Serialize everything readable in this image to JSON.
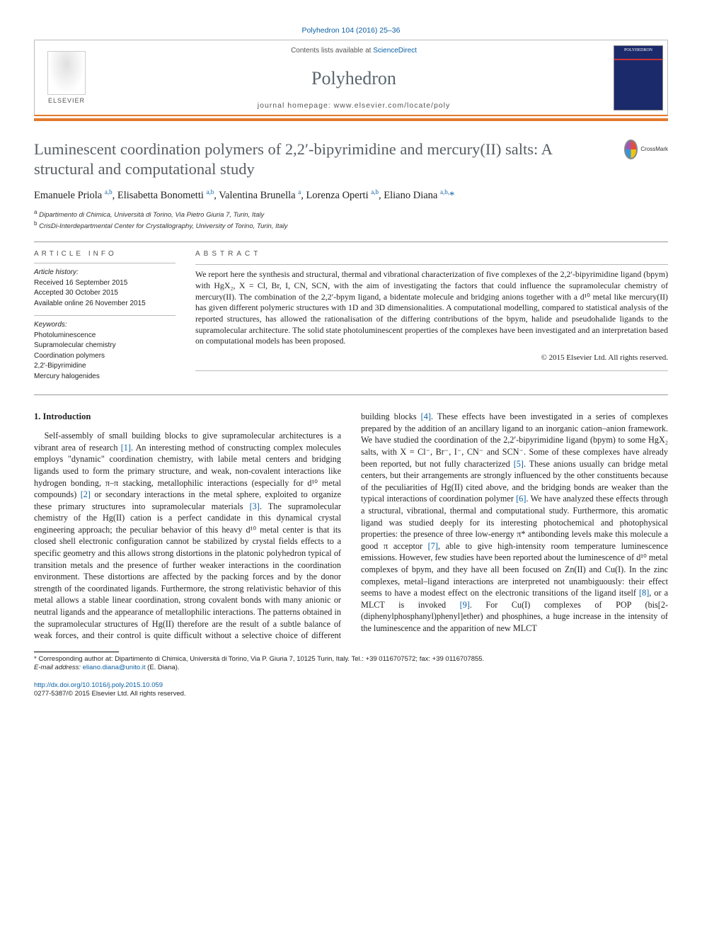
{
  "journal_ref": "Polyhedron 104 (2016) 25–36",
  "header": {
    "contents_prefix": "Contents lists available at ",
    "contents_link": "ScienceDirect",
    "journal": "Polyhedron",
    "homepage_prefix": "journal homepage: ",
    "homepage_url": "www.elsevier.com/locate/poly",
    "publisher": "ELSEVIER",
    "cover_label": "POLYHEDRON"
  },
  "title": "Luminescent coordination polymers of 2,2′-bipyrimidine and mercury(II) salts: A structural and computational study",
  "crossmark": "CrossMark",
  "authors_html": "Emanuele Priola <sup>a,b</sup>, Elisabetta Bonometti <sup>a,b</sup>, Valentina Brunella <sup>a</sup>, Lorenza Operti <sup>a,b</sup>, Eliano Diana <sup>a,b,</sup><span class='star'>*</span>",
  "affiliations": [
    "Dipartimento di Chimica, Università di Torino, Via Pietro Giuria 7, Turin, Italy",
    "CrisDi-Interdepartmental Center for Crystallography, University of Torino, Turin, Italy"
  ],
  "aff_markers": [
    "a",
    "b"
  ],
  "info": {
    "heading": "ARTICLE INFO",
    "history_head": "Article history:",
    "received": "Received 16 September 2015",
    "accepted": "Accepted 30 October 2015",
    "online": "Available online 26 November 2015",
    "kw_head": "Keywords:",
    "keywords": [
      "Photoluminescence",
      "Supramolecular chemistry",
      "Coordination polymers",
      "2,2′-Bipyrimidine",
      "Mercury halogenides"
    ]
  },
  "abstract": {
    "heading": "ABSTRACT",
    "text": "We report here the synthesis and structural, thermal and vibrational characterization of five complexes of the 2,2′-bipyrimidine ligand (bpym) with HgX₂, X = Cl, Br, I, CN, SCN, with the aim of investigating the factors that could influence the supramolecular chemistry of mercury(II). The combination of the 2,2′-bpym ligand, a bidentate molecule and bridging anions together with a d¹⁰ metal like mercury(II) has given different polymeric structures with 1D and 3D dimensionalities. A computational modelling, compared to statistical analysis of the reported structures, has allowed the rationalisation of the differing contributions of the bpym, halide and pseudohalide ligands to the supramolecular architecture. The solid state photoluminescent properties of the complexes have been investigated and an interpretation based on computational models has been proposed.",
    "copyright": "© 2015 Elsevier Ltd. All rights reserved."
  },
  "section_heading": "1. Introduction",
  "body_paragraph": "Self-assembly of small building blocks to give supramolecular architectures is a vibrant area of research [1]. An interesting method of constructing complex molecules employs \"dynamic\" coordination chemistry, with labile metal centers and bridging ligands used to form the primary structure, and weak, non-covalent interactions like hydrogen bonding, π–π stacking, metallophilic interactions (especially for d¹⁰ metal compounds) [2] or secondary interactions in the metal sphere, exploited to organize these primary structures into supramolecular materials [3]. The supramolecular chemistry of the Hg(II) cation is a perfect candidate in this dynamical crystal engineering approach; the peculiar behavior of this heavy d¹⁰ metal center is that its closed shell electronic configuration cannot be stabilized by crystal fields effects to a specific geometry and this allows strong distortions in the platonic polyhedron typical of transition metals and the presence of further weaker interactions in the coordination environment. These distortions are affected by the packing forces and by the donor strength of the coordinated ligands. Furthermore, the strong relativistic behavior of this metal allows a stable linear coordination, strong covalent bonds with many anionic or neutral ligands and the appearance of metallophilic interactions. The patterns obtained in the supramolecular structures of Hg(II) therefore are the result of a subtle balance of weak forces, and their control is quite difficult without a selective choice of different building blocks [4]. These effects have been investigated in a series of complexes prepared by the addition of an ancillary ligand to an inorganic cation–anion framework. We have studied the coordination of the 2,2′-bipyrimidine ligand (bpym) to some HgX₂ salts, with X = Cl⁻, Br⁻, I⁻, CN⁻ and SCN⁻. Some of these complexes have already been reported, but not fully characterized [5]. These anions usually can bridge metal centers, but their arrangements are strongly influenced by the other constituents because of the peculiarities of Hg(II) cited above, and the bridging bonds are weaker than the typical interactions of coordination polymer [6]. We have analyzed these effects through a structural, vibrational, thermal and computational study. Furthermore, this aromatic ligand was studied deeply for its interesting photochemical and photophysical properties: the presence of three low-energy π* antibonding levels make this molecule a good π acceptor [7], able to give high-intensity room temperature luminescence emissions. However, few studies have been reported about the luminescence of d¹⁰ metal complexes of bpym, and they have all been focused on Zn(II) and Cu(I). In the zinc complexes, metal–ligand interactions are interpreted not unambiguously: their effect seems to have a modest effect on the electronic transitions of the ligand itself [8], or a MLCT is invoked [9]. For Cu(I) complexes of POP (bis[2-(diphenylphosphanyl)phenyl]ether) and phosphines, a huge increase in the intensity of the luminescence and the apparition of new MLCT",
  "footnote": {
    "corr": "* Corresponding author at: Dipartimento di Chimica, Università di Torino, Via P. Giuria 7, 10125 Turin, Italy. Tel.: +39 0116707572; fax: +39 0116707855.",
    "email_label": "E-mail address: ",
    "email": "eliano.diana@unito.it",
    "email_suffix": " (E. Diana)."
  },
  "bottom": {
    "doi": "http://dx.doi.org/10.1016/j.poly.2015.10.059",
    "issn_line": "0277-5387/© 2015 Elsevier Ltd. All rights reserved."
  },
  "colors": {
    "link": "#0a5fa3",
    "accent": "#e37a2e",
    "title": "#575e63"
  }
}
